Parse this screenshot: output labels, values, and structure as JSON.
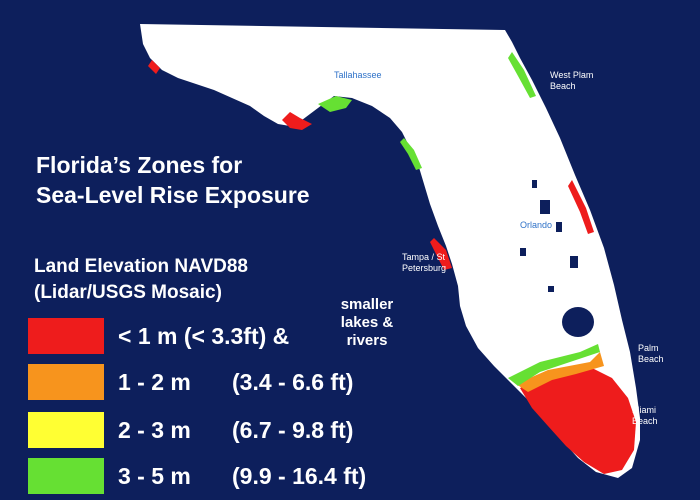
{
  "title_line1": "Florida’s Zones for",
  "title_line2": "Sea-Level Rise Exposure",
  "legend": {
    "title_line1": "Land Elevation NAVD88",
    "title_line2": "(Lidar/USGS Mosaic)",
    "note": "smaller lakes & rivers",
    "items": [
      {
        "range": "< 1 m (< 3.3ft) &",
        "feet": "",
        "color": "#ee1c1c"
      },
      {
        "range": "1 - 2 m",
        "feet": "(3.4 - 6.6 ft)",
        "color": "#f7941d"
      },
      {
        "range": "2 - 3 m",
        "feet": "(6.7 - 9.8 ft)",
        "color": "#ffff33"
      },
      {
        "range": "3 - 5 m",
        "feet": "(9.9 - 16.4 ft)",
        "color": "#66e033"
      }
    ]
  },
  "cities": {
    "tallahassee": "Tallahassee",
    "west_palm_beach_line1": "West Plam",
    "west_palm_beach_line2": "Beach",
    "orlando": "Orlando",
    "tampa_line1": "Tampa / St",
    "tampa_line2": "Petersburg",
    "palm_beach_line1": "Palm",
    "palm_beach_line2": "Beach",
    "miami_beach_line1": "Miami",
    "miami_beach_line2": "Beach"
  },
  "colors": {
    "background": "#0d1f5c",
    "land": "#ffffff",
    "water": "#0d1f5c"
  }
}
